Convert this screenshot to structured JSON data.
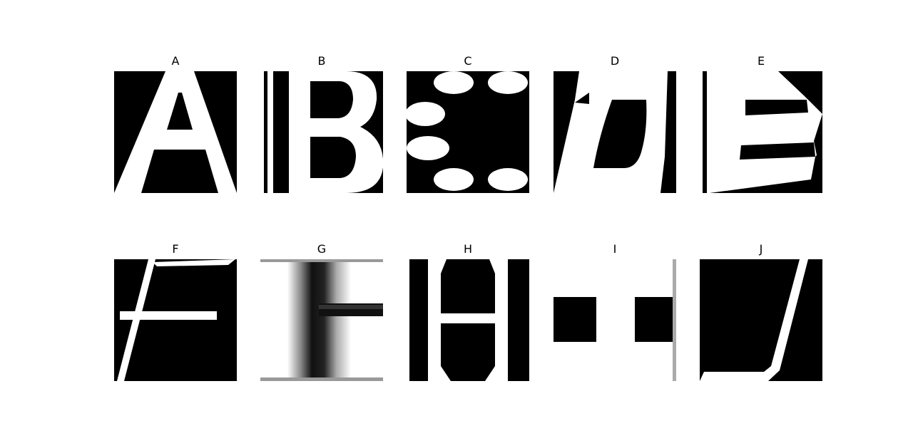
{
  "figure": {
    "panels": [
      {
        "id": "A",
        "title": "A"
      },
      {
        "id": "B",
        "title": "B"
      },
      {
        "id": "C",
        "title": "C"
      },
      {
        "id": "D",
        "title": "D"
      },
      {
        "id": "E",
        "title": "E"
      },
      {
        "id": "F",
        "title": "F"
      },
      {
        "id": "G",
        "title": "G"
      },
      {
        "id": "H",
        "title": "H"
      },
      {
        "id": "I",
        "title": "I"
      },
      {
        "id": "J",
        "title": "J"
      }
    ]
  },
  "colors": {
    "background": "#000000",
    "foreground": "#ffffff"
  }
}
